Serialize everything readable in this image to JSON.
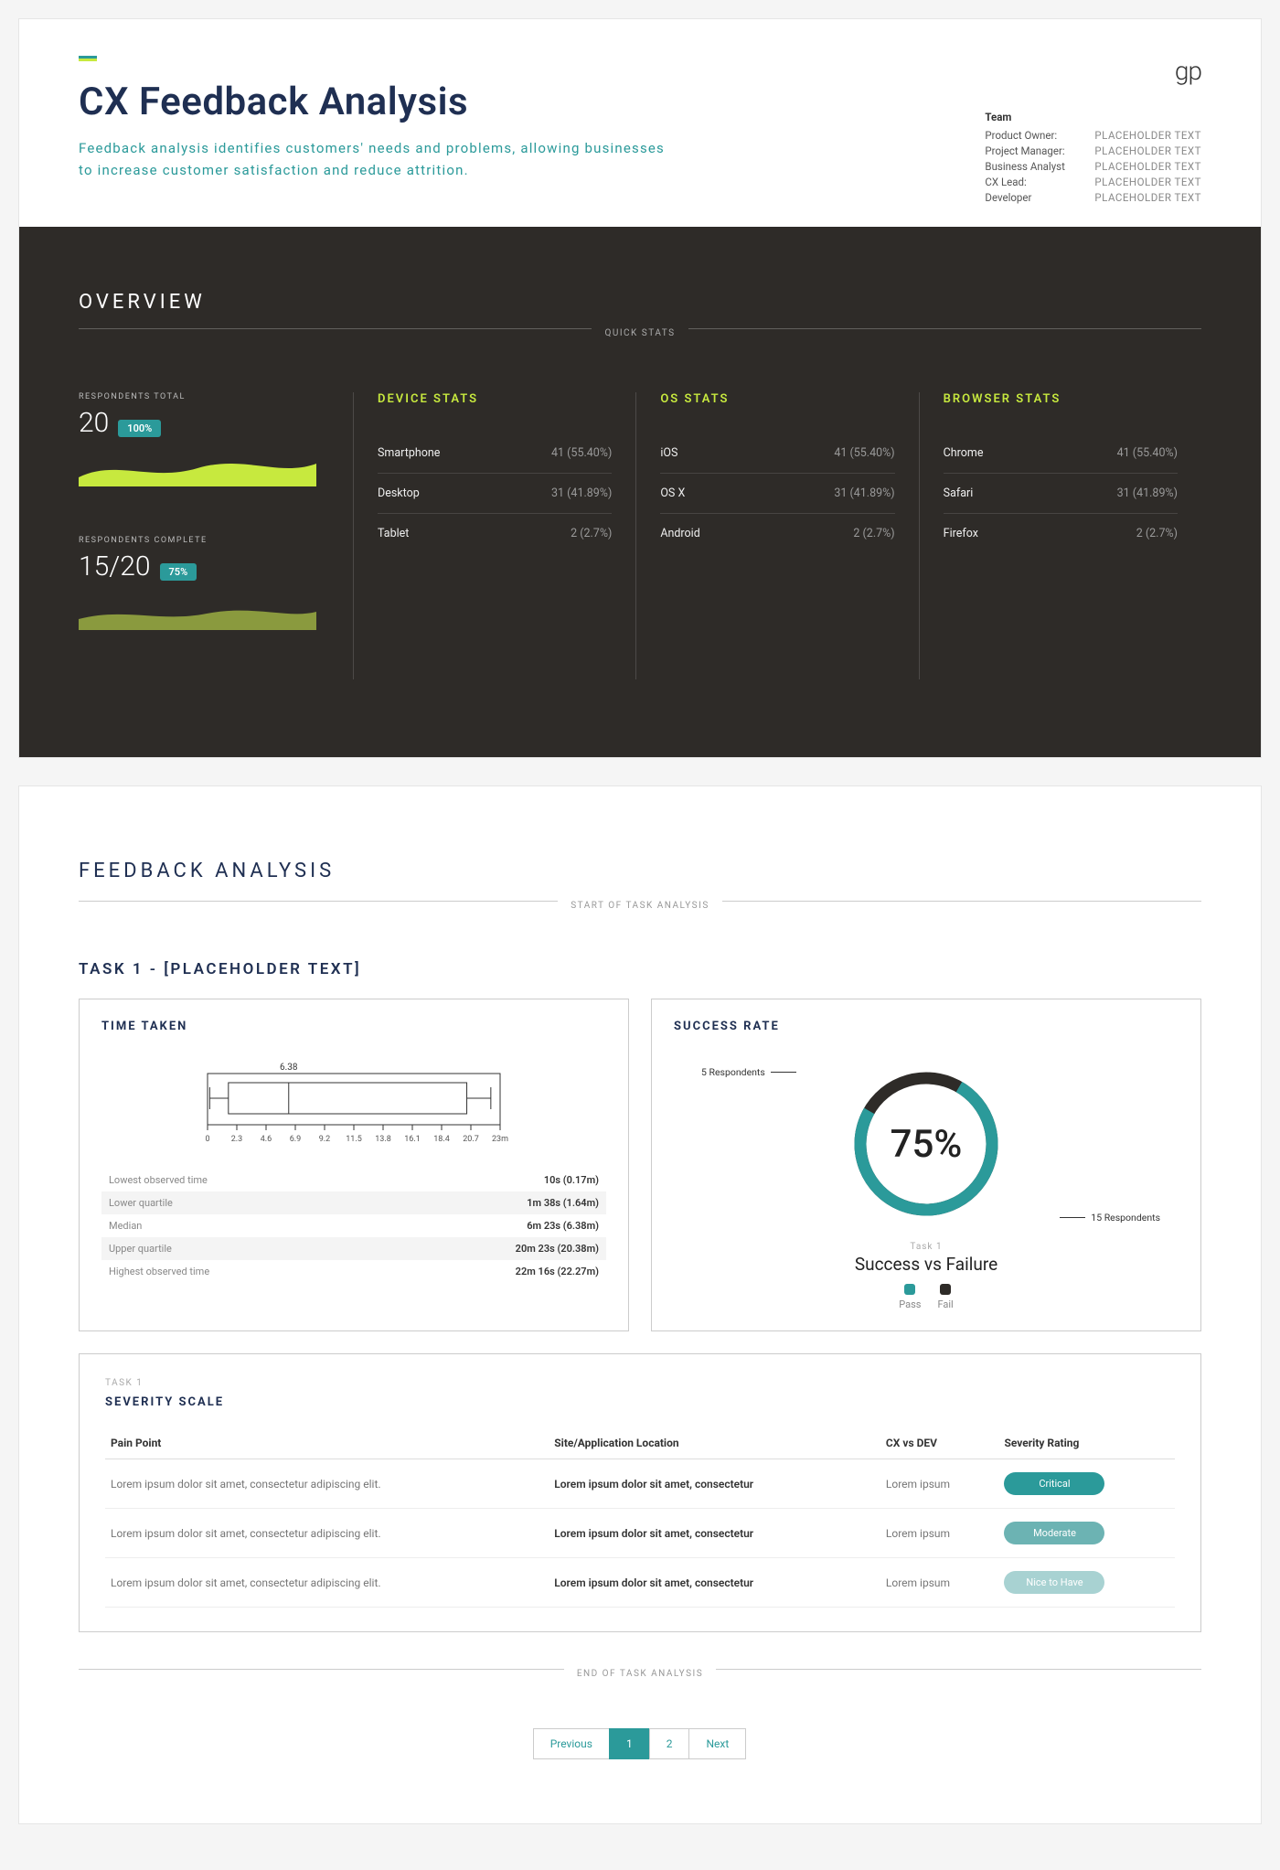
{
  "logo": "gp",
  "accent_colors": {
    "teal": "#2b9a9a",
    "lime": "#c7e93e"
  },
  "header": {
    "title": "CX Feedback Analysis",
    "subtitle": "Feedback analysis identifies customers' needs and problems, allowing businesses to increase customer satisfaction and reduce attrition."
  },
  "team": {
    "title": "Team",
    "rows": [
      {
        "role": "Product Owner:",
        "name": "PLACEHOLDER TEXT"
      },
      {
        "role": "Project Manager:",
        "name": "PLACEHOLDER TEXT"
      },
      {
        "role": "Business Analyst",
        "name": "PLACEHOLDER TEXT"
      },
      {
        "role": "CX Lead:",
        "name": "PLACEHOLDER TEXT"
      },
      {
        "role": "Developer",
        "name": "PLACEHOLDER TEXT"
      }
    ]
  },
  "overview": {
    "heading": "OVERVIEW",
    "quick_stats_label": "QUICK STATS",
    "respondents_total": {
      "label": "RESPONDENTS TOTAL",
      "value": "20",
      "badge": "100%",
      "wave_color": "#c7e93e"
    },
    "respondents_complete": {
      "label": "RESPONDENTS COMPLETE",
      "value": "15/20",
      "badge": "75%",
      "wave_color": "#8a9a3e"
    },
    "columns": [
      {
        "title": "DEVICE STATS",
        "rows": [
          {
            "name": "Smartphone",
            "val": "41 (55.40%)"
          },
          {
            "name": "Desktop",
            "val": "31 (41.89%)"
          },
          {
            "name": "Tablet",
            "val": "2 (2.7%)"
          }
        ]
      },
      {
        "title": "OS STATS",
        "rows": [
          {
            "name": "iOS",
            "val": "41 (55.40%)"
          },
          {
            "name": "OS X",
            "val": "31 (41.89%)"
          },
          {
            "name": "Android",
            "val": "2 (2.7%)"
          }
        ]
      },
      {
        "title": "BROWSER STATS",
        "rows": [
          {
            "name": "Chrome",
            "val": "41 (55.40%)"
          },
          {
            "name": "Safari",
            "val": "31 (41.89%)"
          },
          {
            "name": "Firefox",
            "val": "2 (2.7%)"
          }
        ]
      }
    ]
  },
  "feedback": {
    "heading": "FEEDBACK ANALYSIS",
    "start_label": "START OF TASK ANALYSIS",
    "end_label": "END OF TASK ANALYSIS",
    "task_title": "TASK 1 - [PLACEHOLDER TEXT]",
    "time_panel": {
      "title": "TIME TAKEN",
      "boxplot": {
        "median_label": "6.38",
        "ticks": [
          "0",
          "2.3",
          "4.6",
          "6.9",
          "9.2",
          "11.5",
          "13.8",
          "16.1",
          "18.4",
          "20.7",
          "23m"
        ],
        "min": 0.17,
        "q1": 1.64,
        "median": 6.38,
        "q3": 20.38,
        "max": 22.27,
        "xmax": 23
      },
      "rows": [
        {
          "label": "Lowest observed time",
          "val": "10s (0.17m)"
        },
        {
          "label": "Lower quartile",
          "val": "1m 38s (1.64m)"
        },
        {
          "label": "Median",
          "val": "6m 23s (6.38m)"
        },
        {
          "label": "Upper quartile",
          "val": "20m 23s (20.38m)"
        },
        {
          "label": "Highest observed time",
          "val": "22m 16s (22.27m)"
        }
      ]
    },
    "success_panel": {
      "title": "SUCCESS RATE",
      "percent": 75,
      "percent_label": "75%",
      "anno_left": "5 Respondents",
      "anno_right": "15 Respondents",
      "sub": "Task 1",
      "main": "Success vs Failure",
      "legend": [
        {
          "label": "Pass",
          "color": "#2b9a9a"
        },
        {
          "label": "Fail",
          "color": "#2e2b28"
        }
      ]
    },
    "severity": {
      "pre": "TASK 1",
      "title": "SEVERITY SCALE",
      "columns": [
        "Pain Point",
        "Site/Application Location",
        "CX vs DEV",
        "Severity Rating"
      ],
      "rows": [
        {
          "pain": "Lorem ipsum dolor sit amet, consectetur adipiscing elit.",
          "loc": "Lorem ipsum dolor sit amet, consectetur",
          "cx": "Lorem ipsum",
          "rating": "Critical",
          "color": "#2b9a9a"
        },
        {
          "pain": "Lorem ipsum dolor sit amet, consectetur adipiscing elit.",
          "loc": "Lorem ipsum dolor sit amet, consectetur",
          "cx": "Lorem ipsum",
          "rating": "Moderate",
          "color": "#6cb3b3"
        },
        {
          "pain": "Lorem ipsum dolor sit amet, consectetur adipiscing elit.",
          "loc": "Lorem ipsum dolor sit amet, consectetur",
          "cx": "Lorem ipsum",
          "rating": "Nice to Have",
          "color": "#a8d2d2"
        }
      ]
    }
  },
  "pagination": {
    "prev": "Previous",
    "pages": [
      "1",
      "2"
    ],
    "active_index": 0,
    "next": "Next"
  }
}
